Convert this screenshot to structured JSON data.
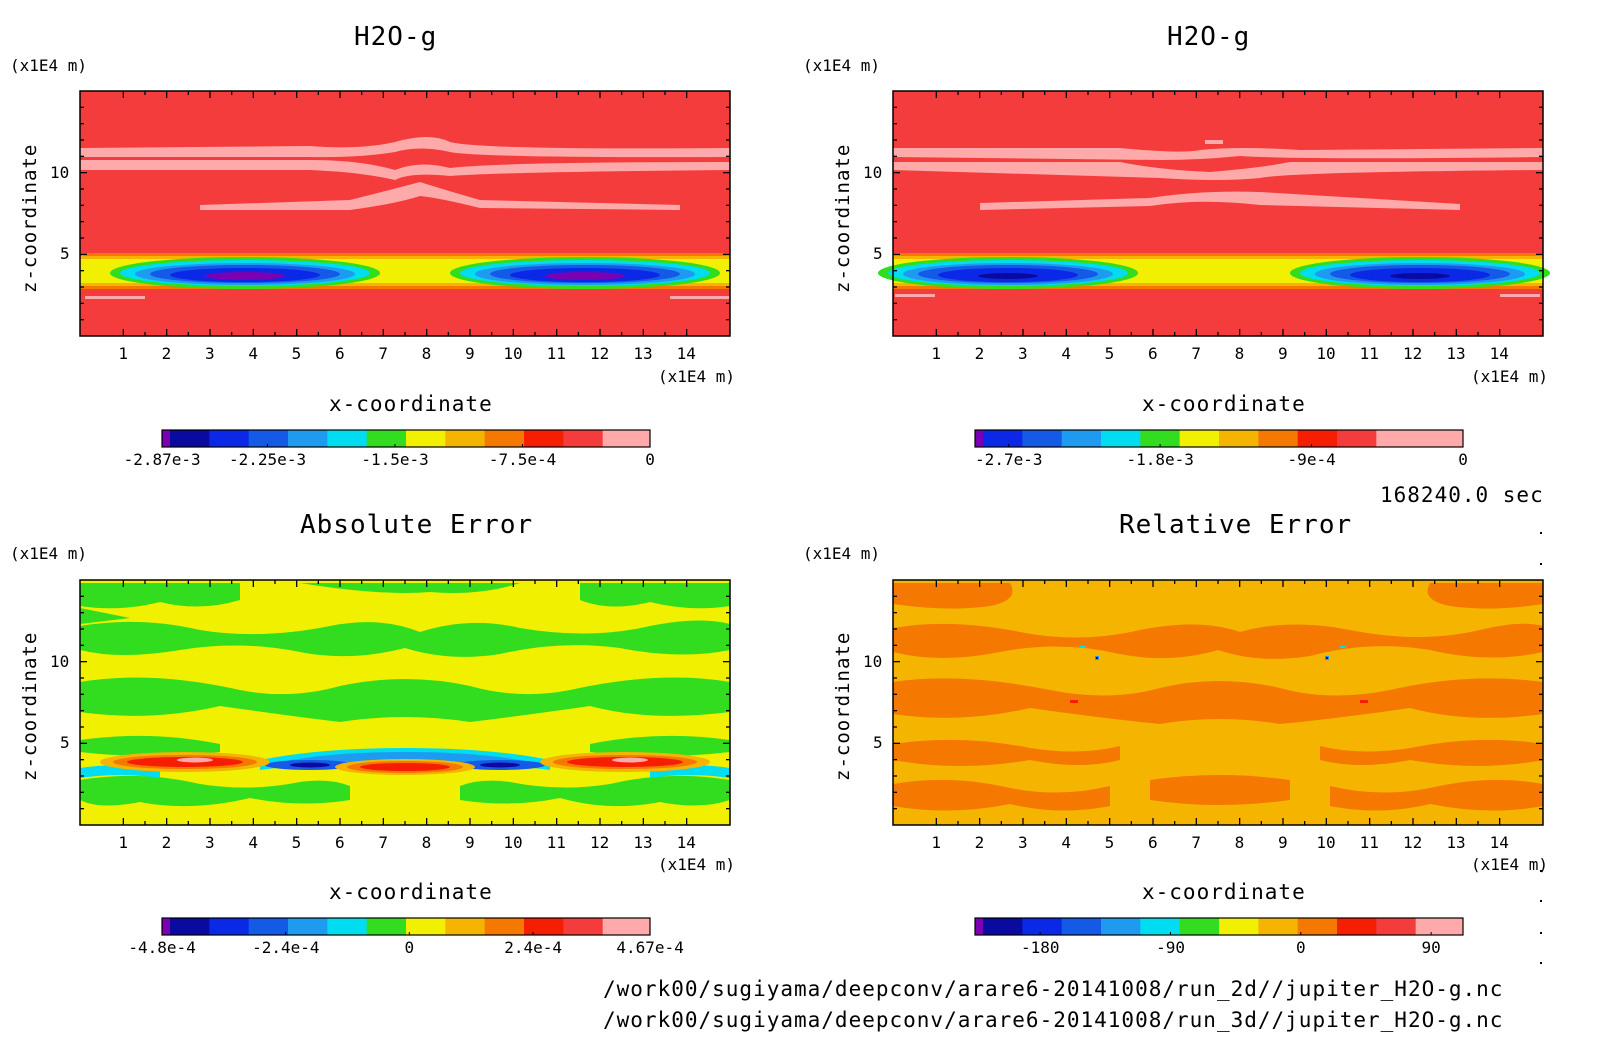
{
  "colors": {
    "field_h2o": [
      "#7a00b4",
      "#0a0aa0",
      "#0a28e6",
      "#145ae6",
      "#1e9bf0",
      "#00dcf0",
      "#32dc1e",
      "#f0f000",
      "#f5b400",
      "#f57800",
      "#f51e00",
      "#f53c3c",
      "#ffaaaa"
    ],
    "field_err": [
      "#7a00b4",
      "#0a0aa0",
      "#0a28e6",
      "#145ae6",
      "#1e9bf0",
      "#00dcf0",
      "#32dc1e",
      "#f0f000",
      "#f5b400",
      "#f57800",
      "#f51e00",
      "#f53c3c",
      "#ffaaaa"
    ]
  },
  "chart_data": [
    {
      "type": "heatmap",
      "title": "H2O-g",
      "xlabel": "x-coordinate",
      "ylabel": "z-coordinate",
      "x_unit": "(x1E4 m)",
      "y_unit": "(x1E4 m)",
      "xlim": [
        0,
        15
      ],
      "ylim": [
        0,
        15
      ],
      "x_ticks": [
        "1",
        "2",
        "3",
        "4",
        "5",
        "6",
        "7",
        "8",
        "9",
        "10",
        "11",
        "12",
        "13",
        "14"
      ],
      "y_ticks": [
        "5",
        "10"
      ],
      "dominant_value": 0,
      "features": "near-zero field with two negative minima (~-2.87e-3) centered near x=3.5 and x=11.5 at z~3.8; pale bands near z=11 and z=8",
      "colorbar": {
        "labels": [
          "-2.87e-3",
          "-2.25e-3",
          "-1.5e-3",
          "-7.5e-4",
          "0"
        ],
        "min": -0.00287,
        "max": 0
      }
    },
    {
      "type": "heatmap",
      "title": "H2O-g",
      "xlabel": "x-coordinate",
      "ylabel": "z-coordinate",
      "x_unit": "(x1E4 m)",
      "y_unit": "(x1E4 m)",
      "xlim": [
        0,
        15
      ],
      "ylim": [
        0,
        15
      ],
      "x_ticks": [
        "1",
        "2",
        "3",
        "4",
        "5",
        "6",
        "7",
        "8",
        "9",
        "10",
        "11",
        "12",
        "13",
        "14"
      ],
      "y_ticks": [
        "5",
        "10"
      ],
      "dominant_value": 0,
      "features": "near-zero field with two negative minima (~-2.9e-3) centered near x=3 and x=12 at z~3.7",
      "colorbar": {
        "labels": [
          "-2.7e-3",
          "-1.8e-3",
          "-9e-4",
          "0"
        ],
        "min": -0.0029,
        "max": 0
      }
    },
    {
      "type": "heatmap",
      "title": "Absolute Error",
      "xlabel": "x-coordinate",
      "ylabel": "z-coordinate",
      "x_unit": "(x1E4 m)",
      "y_unit": "(x1E4 m)",
      "xlim": [
        0,
        15
      ],
      "ylim": [
        0,
        15
      ],
      "x_ticks": [
        "1",
        "2",
        "3",
        "4",
        "5",
        "6",
        "7",
        "8",
        "9",
        "10",
        "11",
        "12",
        "13",
        "14"
      ],
      "y_ticks": [
        "5",
        "10"
      ],
      "dominant_value": 0,
      "features": "banded field alternating near 0; positive extrema (~4.67e-4) near x=2.5, 7.5, 12.5 at z~3.6; negative (~-4.8e-4) near x=5.5 and 9.5",
      "colorbar": {
        "labels": [
          "-4.8e-4",
          "-2.4e-4",
          "0",
          "2.4e-4",
          "4.67e-4"
        ],
        "min": -0.00048,
        "max": 0.000467
      }
    },
    {
      "type": "heatmap",
      "title": "Relative Error",
      "xlabel": "x-coordinate",
      "ylabel": "z-coordinate",
      "x_unit": "(x1E4 m)",
      "y_unit": "(x1E4 m)",
      "xlim": [
        0,
        15
      ],
      "ylim": [
        0,
        15
      ],
      "x_ticks": [
        "1",
        "2",
        "3",
        "4",
        "5",
        "6",
        "7",
        "8",
        "9",
        "10",
        "11",
        "12",
        "13",
        "14"
      ],
      "y_ticks": [
        "5",
        "10"
      ],
      "dominant_value": 15,
      "features": "field mostly between 0 and 30 with small isolated negative spots near x=5 and x=10 at z~10.5",
      "colorbar": {
        "labels": [
          "-180",
          "-90",
          "0",
          "90"
        ],
        "min": -225,
        "max": 112
      }
    }
  ],
  "time_label": "168240.0 sec",
  "files": [
    "/work00/sugiyama/deepconv/arare6-20141008/run_2d//jupiter_H2O-g.nc",
    "/work00/sugiyama/deepconv/arare6-20141008/run_3d//jupiter_H2O-g.nc"
  ]
}
